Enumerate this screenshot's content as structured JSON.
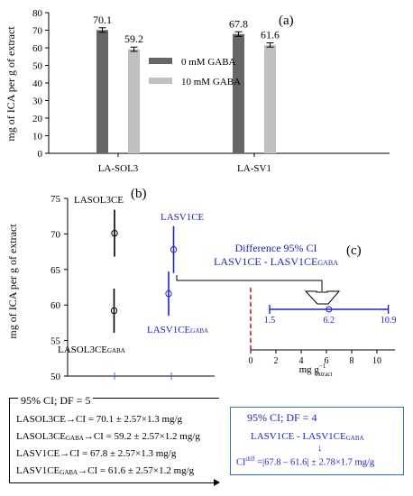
{
  "chart_data": [
    {
      "type": "bar",
      "panel_label": "(a)",
      "ylabel": "mg of ICA per g of extract",
      "ylim": [
        0,
        80
      ],
      "yticks": [
        0,
        10,
        20,
        30,
        40,
        50,
        60,
        70,
        80
      ],
      "categories": [
        "LA-SOL3",
        "LA-SV1"
      ],
      "series": [
        {
          "name": "0 mM GABA",
          "color": "#666666",
          "values": [
            70.1,
            67.8
          ],
          "labels": [
            "70.1",
            "67.8"
          ],
          "errors": [
            1.3,
            1.3
          ]
        },
        {
          "name": "10 mM GABA",
          "color": "#c0c0c0",
          "values": [
            59.2,
            61.6
          ],
          "labels": [
            "59.2",
            "61.6"
          ],
          "errors": [
            1.2,
            1.2
          ]
        }
      ],
      "legend": "center-right"
    },
    {
      "type": "scatter",
      "panel_label": "(b)",
      "ylabel": "mg of ICA per g of extract",
      "ylim": [
        50,
        75
      ],
      "yticks": [
        50,
        55,
        60,
        65,
        70,
        75
      ],
      "points": [
        {
          "group": "LASOL3CE",
          "label": "LASOL3CE",
          "label_sub": "",
          "mean": 70.1,
          "ci": [
            66.8,
            73.4
          ],
          "color": "#000000",
          "column": 1
        },
        {
          "group": "LASOL3CE",
          "label": "LASOL3CE",
          "label_sub": "GABA",
          "mean": 59.2,
          "ci": [
            56.1,
            62.3
          ],
          "color": "#000000",
          "column": 1
        },
        {
          "group": "LASV1CE",
          "label": "LASV1CE",
          "label_sub": "",
          "mean": 67.8,
          "ci": [
            64.5,
            71.1
          ],
          "color": "#1f23c8",
          "column": 2
        },
        {
          "group": "LASV1CE",
          "label": "LASV1CE",
          "label_sub": "GABA",
          "mean": 61.6,
          "ci": [
            58.5,
            64.7
          ],
          "color": "#1f23c8",
          "column": 2
        }
      ]
    },
    {
      "type": "scatter",
      "panel_label": "(c)",
      "title": "Difference 95% CI",
      "subtitle_main": "LASV1CE - LASV1CE",
      "subtitle_sub": "GABA",
      "xlabel_main": "mg g",
      "xlabel_sup": "−1",
      "xlabel_sub": "extract",
      "xlim": [
        0,
        12
      ],
      "xticks": [
        0,
        2,
        4,
        6,
        8,
        10
      ],
      "estimate": 6.2,
      "ci": [
        1.5,
        10.9
      ],
      "estimate_label": "6.2",
      "ci_labels": [
        "1.5",
        "10.9"
      ],
      "reference_line": 0,
      "color": "#1f23c8",
      "reference_color": "#cc0000"
    }
  ],
  "ci_box_left": {
    "title": "95% CI; DF = 5",
    "lines": [
      {
        "name": "LASOL3CE",
        "sub": "",
        "rest": "→CI = 70.1 ± 2.57×1.3 mg/g"
      },
      {
        "name": "LASOL3CE",
        "sub": "GABA",
        "rest": "→CI = 59.2 ± 2.57×1.2 mg/g"
      },
      {
        "name": "LASV1CE",
        "sub": "",
        "rest": "→CI = 67.8 ± 2.57×1.3 mg/g"
      },
      {
        "name": "LASV1CE",
        "sub": "GABA",
        "rest": "→CI = 61.6 ± 2.57×1.2 mg/g"
      }
    ]
  },
  "ci_box_right": {
    "title": "95% CI; DF = 4",
    "line1_main": "LASV1CE - LASV1CE",
    "line1_sub": "GABA",
    "arrow": "↓",
    "line2_main": "CI",
    "line2_sup": "diff",
    "line2_rest": " =|67.8 – 61.6| ± 2.78×1.7 mg/g"
  }
}
